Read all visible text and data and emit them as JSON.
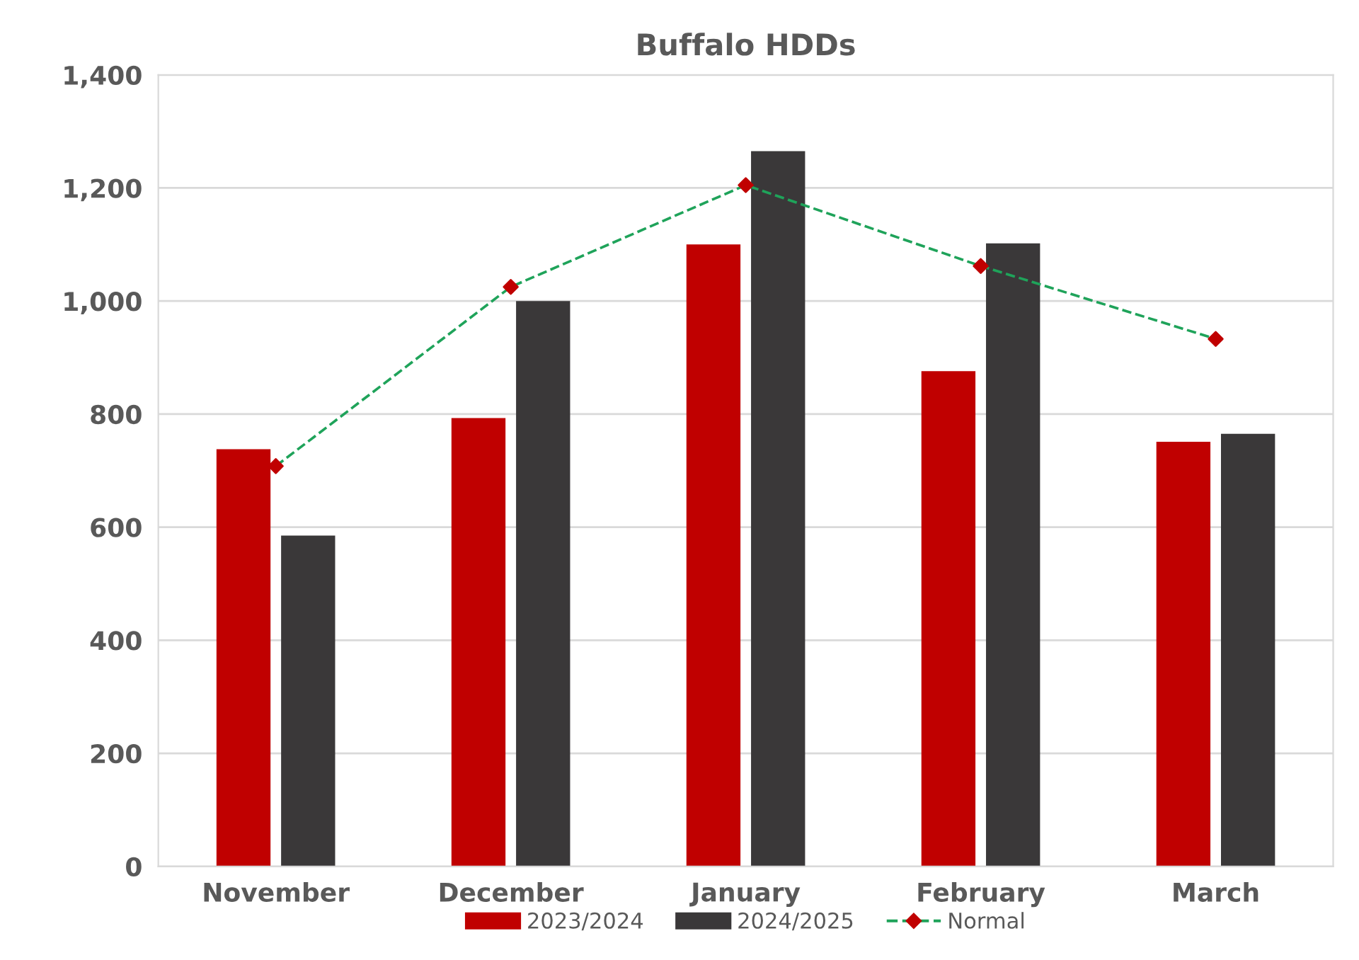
{
  "chart_data": {
    "type": "bar",
    "title": "Buffalo HDDs",
    "categories": [
      "November",
      "December",
      "January",
      "February",
      "March"
    ],
    "series": [
      {
        "name": "2023/2024",
        "color": "#c00000",
        "values": [
          738,
          793,
          1100,
          876,
          751
        ]
      },
      {
        "name": "2024/2025",
        "color": "#3a3839",
        "values": [
          585,
          1000,
          1265,
          1102,
          765
        ]
      },
      {
        "name": "Normal",
        "type": "line",
        "color": "#1fa35a",
        "colors": [
          "#c00000",
          "#c00000",
          "#c00000",
          "#c00000",
          "#c00000"
        ],
        "marker": "diamond",
        "line_style": "dashed",
        "values": [
          708,
          1025,
          1205,
          1062,
          933
        ]
      }
    ],
    "ylim": [
      0,
      1400
    ],
    "yticks": [
      {
        "value": 0,
        "label": "0"
      },
      {
        "value": 200,
        "label": "200"
      },
      {
        "value": 400,
        "label": "400"
      },
      {
        "value": 600,
        "label": "600"
      },
      {
        "value": 800,
        "label": "800"
      },
      {
        "value": 1000,
        "label": "1,000"
      },
      {
        "value": 1200,
        "label": "1,200"
      },
      {
        "value": 1400,
        "label": "1,400"
      }
    ],
    "grid": "y",
    "legend": "bottom"
  }
}
